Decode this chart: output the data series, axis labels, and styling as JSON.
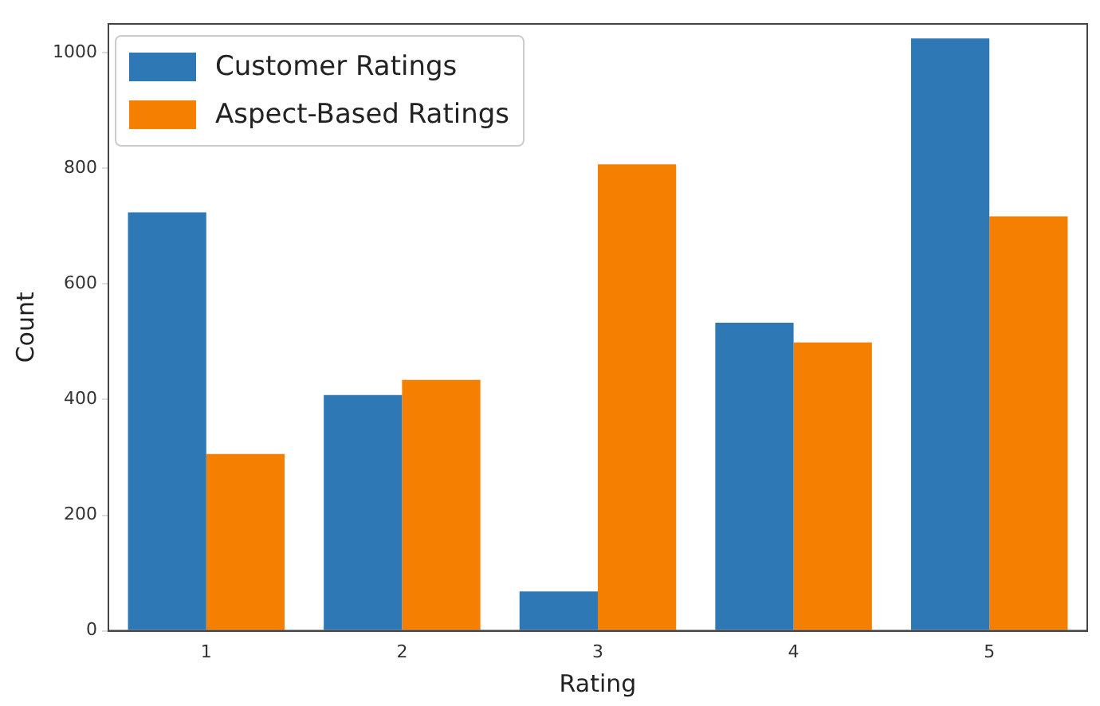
{
  "chart_data": {
    "type": "bar",
    "xlabel": "Rating",
    "ylabel": "Count",
    "categories": [
      "1",
      "2",
      "3",
      "4",
      "5"
    ],
    "series": [
      {
        "name": "Customer Ratings",
        "color": "#2e78b5",
        "values": [
          724,
          408,
          68,
          533,
          1025
        ]
      },
      {
        "name": "Aspect-Based Ratings",
        "color": "#f57f00",
        "values": [
          306,
          434,
          807,
          499,
          717
        ]
      }
    ],
    "ylim": [
      0,
      1050
    ],
    "yticks": [
      0,
      200,
      400,
      600,
      800,
      1000
    ],
    "grid": false,
    "legend": "top left"
  }
}
